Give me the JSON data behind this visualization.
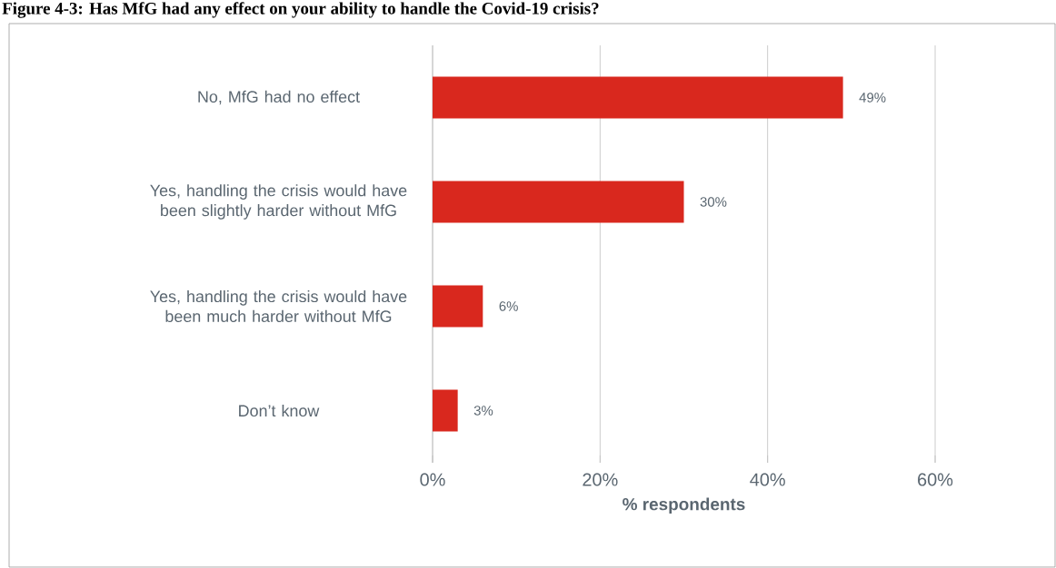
{
  "chart_data": {
    "type": "bar",
    "orientation": "horizontal",
    "title": "Figure 4-3: Has MfG had any effect on your ability to handle the Covid-19 crisis?",
    "xlabel": "% respondents",
    "categories": [
      "No, MfG had no effect",
      "Yes, handling the crisis would have been slightly harder without MfG",
      "Yes, handling the crisis would have been much harder without MfG",
      "Don’t know"
    ],
    "values": [
      49,
      30,
      6,
      3
    ],
    "color": "#d9281e",
    "value_labels": [
      "49%",
      "30%",
      "6%",
      "3%"
    ],
    "xlim": [
      0,
      60
    ],
    "xticks": [
      {
        "value": 0,
        "label": "0%"
      },
      {
        "value": 20,
        "label": "20%"
      },
      {
        "value": 40,
        "label": "40%"
      },
      {
        "value": 60,
        "label": "60%"
      }
    ],
    "grid": "x"
  }
}
